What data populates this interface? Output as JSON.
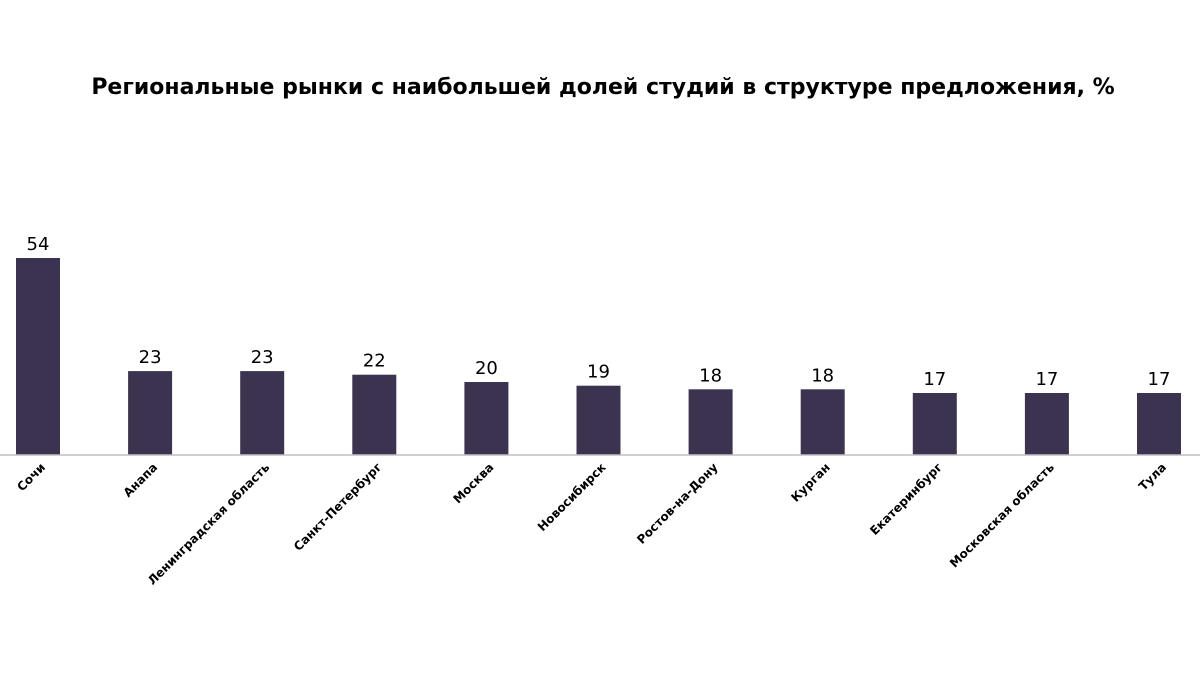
{
  "chart_data": {
    "type": "bar",
    "title": "Региональные рынки с наибольшей долей студий в структуре предложения, %",
    "xlabel": "",
    "ylabel": "",
    "categories": [
      "Сочи",
      "Анапа",
      "Ленинградская область",
      "Санкт-Петербург",
      "Москва",
      "Новосибирск",
      "Ростов-на-Дону",
      "Курган",
      "Екатеринбург",
      "Московская область",
      "Тула"
    ],
    "values": [
      54,
      23,
      23,
      22,
      20,
      19,
      18,
      18,
      17,
      17,
      17
    ],
    "ylim": [
      0,
      60
    ],
    "grid": false,
    "legend": "none",
    "bar_color": "#3b3350",
    "axis_color": "#bfbfbf"
  }
}
